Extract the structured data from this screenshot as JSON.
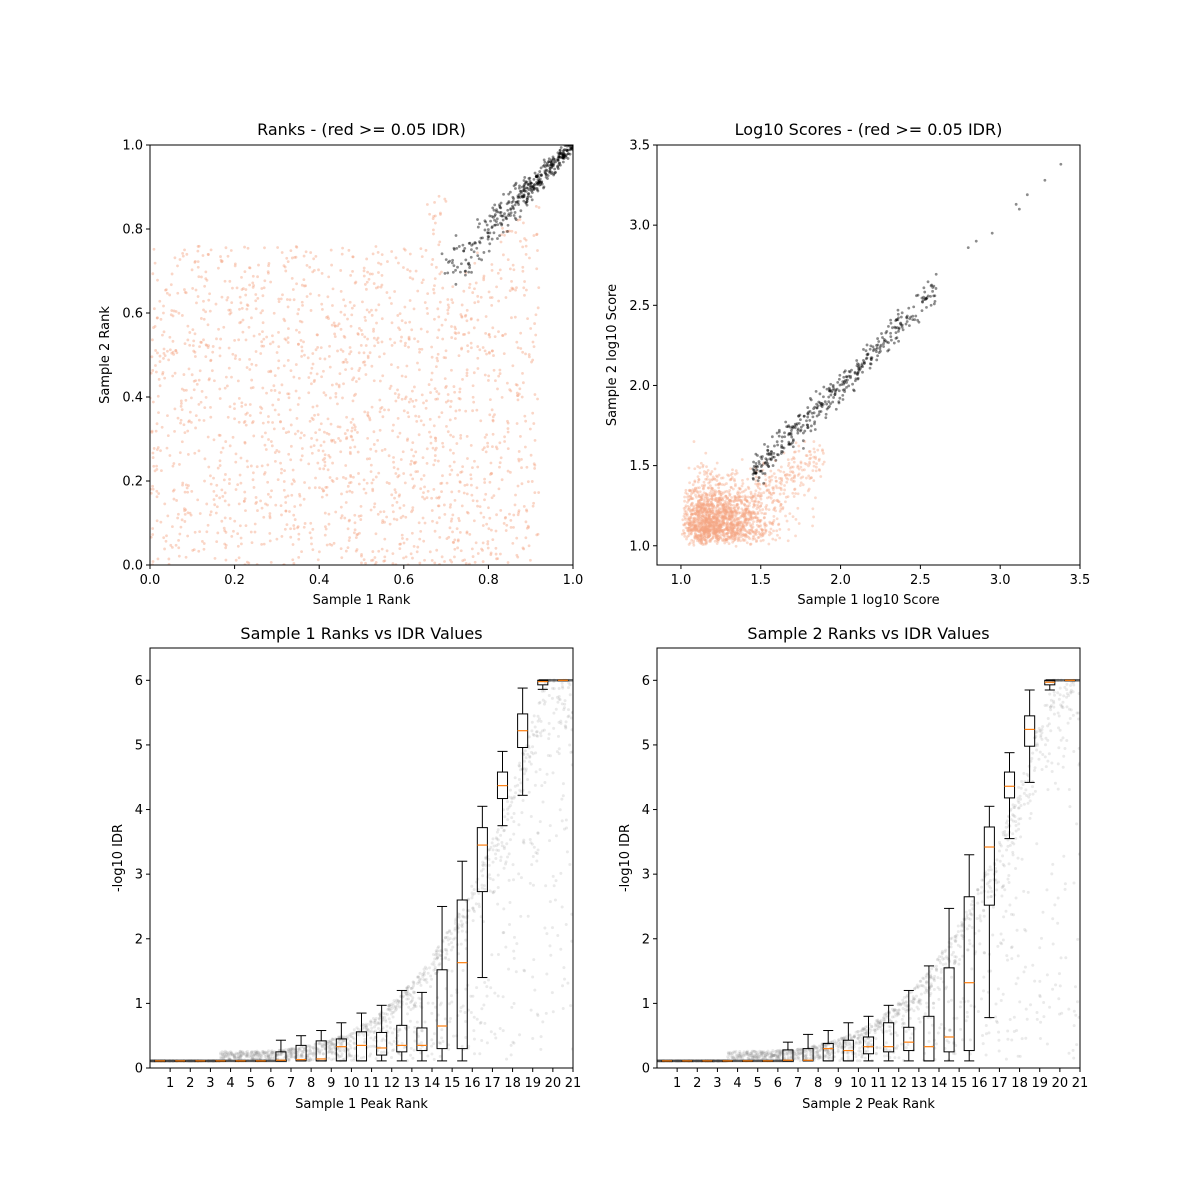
{
  "chart_data": [
    {
      "type": "scatter",
      "title": "Ranks - (red >= 0.05 IDR)",
      "xlabel": "Sample 1 Rank",
      "ylabel": "Sample 2 Rank",
      "xlim": [
        0,
        1
      ],
      "ylim": [
        0,
        1
      ],
      "xticks": [
        "0.0",
        "0.2",
        "0.4",
        "0.6",
        "0.8",
        "1.0"
      ],
      "yticks": [
        "0.0",
        "0.2",
        "0.4",
        "0.6",
        "0.8",
        "1.0"
      ],
      "series": [
        {
          "color": "#f4a582",
          "point_count": 1800,
          "x_range": [
            0,
            0.92
          ],
          "y_range": [
            0,
            0.88
          ],
          "pattern": "uniform, upper-left triangle below diagonal band"
        },
        {
          "color": "#000000",
          "point_count": 400,
          "x_range": [
            0.68,
            1.0
          ],
          "y_range": [
            0.68,
            1.0
          ],
          "pattern": "tight band along diagonal"
        }
      ]
    },
    {
      "type": "scatter",
      "title": "Log10 Scores - (red >= 0.05 IDR)",
      "xlabel": "Sample 1 log10 Score",
      "ylabel": "Sample 2 log10 Score",
      "xlim": [
        0.85,
        3.5
      ],
      "ylim": [
        0.88,
        3.5
      ],
      "xticks": [
        "1.0",
        "1.5",
        "2.0",
        "2.5",
        "3.0",
        "3.5"
      ],
      "yticks": [
        "1.0",
        "1.5",
        "2.0",
        "2.5",
        "3.0",
        "3.5"
      ],
      "series": [
        {
          "color": "#f4a582",
          "point_count": 1800,
          "x_range": [
            1.0,
            1.95
          ],
          "y_range": [
            1.0,
            1.65
          ],
          "pattern": "dense cluster near (1.15, 1.15)"
        },
        {
          "color": "#000000",
          "point_count": 400,
          "x_range": [
            1.45,
            3.38
          ],
          "y_range": [
            1.45,
            3.38
          ],
          "pattern": "diagonal band"
        }
      ]
    },
    {
      "type": "box",
      "title": "Sample 1 Ranks vs IDR Values",
      "xlabel": "Sample 1 Peak Rank",
      "ylabel": "-log10 IDR",
      "xlim": [
        0,
        21
      ],
      "ylim": [
        0,
        6.5
      ],
      "xticks": [
        "1",
        "2",
        "3",
        "4",
        "5",
        "6",
        "7",
        "8",
        "9",
        "10",
        "11",
        "12",
        "13",
        "14",
        "15",
        "16",
        "17",
        "18",
        "19",
        "20",
        "21"
      ],
      "yticks": [
        "0",
        "1",
        "2",
        "3",
        "4",
        "5",
        "6"
      ],
      "boxes": [
        {
          "x": 1,
          "q1": 0.11,
          "median": 0.11,
          "q3": 0.11,
          "whislo": 0.11,
          "whishi": 0.11
        },
        {
          "x": 2,
          "q1": 0.11,
          "median": 0.11,
          "q3": 0.11,
          "whislo": 0.11,
          "whishi": 0.11
        },
        {
          "x": 3,
          "q1": 0.11,
          "median": 0.11,
          "q3": 0.11,
          "whislo": 0.11,
          "whishi": 0.11
        },
        {
          "x": 4,
          "q1": 0.11,
          "median": 0.11,
          "q3": 0.11,
          "whislo": 0.11,
          "whishi": 0.11
        },
        {
          "x": 5,
          "q1": 0.11,
          "median": 0.11,
          "q3": 0.11,
          "whislo": 0.11,
          "whishi": 0.11
        },
        {
          "x": 6,
          "q1": 0.11,
          "median": 0.11,
          "q3": 0.11,
          "whislo": 0.11,
          "whishi": 0.11
        },
        {
          "x": 7,
          "q1": 0.11,
          "median": 0.12,
          "q3": 0.25,
          "whislo": 0.11,
          "whishi": 0.43
        },
        {
          "x": 8,
          "q1": 0.11,
          "median": 0.13,
          "q3": 0.35,
          "whislo": 0.11,
          "whishi": 0.5
        },
        {
          "x": 9,
          "q1": 0.11,
          "median": 0.14,
          "q3": 0.42,
          "whislo": 0.11,
          "whishi": 0.58
        },
        {
          "x": 10,
          "q1": 0.11,
          "median": 0.33,
          "q3": 0.45,
          "whislo": 0.11,
          "whishi": 0.7
        },
        {
          "x": 11,
          "q1": 0.11,
          "median": 0.35,
          "q3": 0.56,
          "whislo": 0.11,
          "whishi": 0.85
        },
        {
          "x": 12,
          "q1": 0.2,
          "median": 0.31,
          "q3": 0.55,
          "whislo": 0.11,
          "whishi": 0.97
        },
        {
          "x": 13,
          "q1": 0.25,
          "median": 0.35,
          "q3": 0.66,
          "whislo": 0.11,
          "whishi": 1.2
        },
        {
          "x": 14,
          "q1": 0.27,
          "median": 0.35,
          "q3": 0.62,
          "whislo": 0.11,
          "whishi": 1.17
        },
        {
          "x": 15,
          "q1": 0.3,
          "median": 0.65,
          "q3": 1.52,
          "whislo": 0.11,
          "whishi": 2.5
        },
        {
          "x": 16,
          "q1": 0.3,
          "median": 1.63,
          "q3": 2.6,
          "whislo": 0.11,
          "whishi": 3.2
        },
        {
          "x": 17,
          "q1": 2.73,
          "median": 3.45,
          "q3": 3.72,
          "whislo": 1.4,
          "whishi": 4.05
        },
        {
          "x": 18,
          "q1": 4.17,
          "median": 4.37,
          "q3": 4.58,
          "whislo": 3.75,
          "whishi": 4.9
        },
        {
          "x": 19,
          "q1": 4.96,
          "median": 5.22,
          "q3": 5.48,
          "whislo": 4.22,
          "whishi": 5.88
        },
        {
          "x": 20,
          "q1": 5.93,
          "median": 5.98,
          "q3": 6.0,
          "whislo": 5.86,
          "whishi": 6.0
        },
        {
          "x": 21,
          "q1": 6.0,
          "median": 6.0,
          "q3": 6.0,
          "whislo": 6.0,
          "whishi": 6.0
        }
      ]
    },
    {
      "type": "box",
      "title": "Sample 2 Ranks vs IDR Values",
      "xlabel": "Sample 2 Peak Rank",
      "ylabel": "-log10 IDR",
      "xlim": [
        0,
        21
      ],
      "ylim": [
        0,
        6.5
      ],
      "xticks": [
        "1",
        "2",
        "3",
        "4",
        "5",
        "6",
        "7",
        "8",
        "9",
        "10",
        "11",
        "12",
        "13",
        "14",
        "15",
        "16",
        "17",
        "18",
        "19",
        "20",
        "21"
      ],
      "yticks": [
        "0",
        "1",
        "2",
        "3",
        "4",
        "5",
        "6"
      ],
      "boxes": [
        {
          "x": 1,
          "q1": 0.11,
          "median": 0.11,
          "q3": 0.11,
          "whislo": 0.11,
          "whishi": 0.11
        },
        {
          "x": 2,
          "q1": 0.11,
          "median": 0.11,
          "q3": 0.11,
          "whislo": 0.11,
          "whishi": 0.11
        },
        {
          "x": 3,
          "q1": 0.11,
          "median": 0.11,
          "q3": 0.11,
          "whislo": 0.11,
          "whishi": 0.11
        },
        {
          "x": 4,
          "q1": 0.11,
          "median": 0.11,
          "q3": 0.11,
          "whislo": 0.11,
          "whishi": 0.11
        },
        {
          "x": 5,
          "q1": 0.11,
          "median": 0.11,
          "q3": 0.11,
          "whislo": 0.11,
          "whishi": 0.11
        },
        {
          "x": 6,
          "q1": 0.11,
          "median": 0.11,
          "q3": 0.11,
          "whislo": 0.11,
          "whishi": 0.11
        },
        {
          "x": 7,
          "q1": 0.11,
          "median": 0.12,
          "q3": 0.28,
          "whislo": 0.11,
          "whishi": 0.4
        },
        {
          "x": 8,
          "q1": 0.11,
          "median": 0.12,
          "q3": 0.3,
          "whislo": 0.11,
          "whishi": 0.52
        },
        {
          "x": 9,
          "q1": 0.11,
          "median": 0.3,
          "q3": 0.38,
          "whislo": 0.11,
          "whishi": 0.58
        },
        {
          "x": 10,
          "q1": 0.11,
          "median": 0.27,
          "q3": 0.43,
          "whislo": 0.11,
          "whishi": 0.7
        },
        {
          "x": 11,
          "q1": 0.22,
          "median": 0.33,
          "q3": 0.48,
          "whislo": 0.11,
          "whishi": 0.8
        },
        {
          "x": 12,
          "q1": 0.25,
          "median": 0.33,
          "q3": 0.7,
          "whislo": 0.11,
          "whishi": 0.97
        },
        {
          "x": 13,
          "q1": 0.27,
          "median": 0.4,
          "q3": 0.63,
          "whislo": 0.11,
          "whishi": 1.2
        },
        {
          "x": 14,
          "q1": 0.11,
          "median": 0.33,
          "q3": 0.8,
          "whislo": 0.11,
          "whishi": 1.58
        },
        {
          "x": 15,
          "q1": 0.25,
          "median": 0.48,
          "q3": 1.55,
          "whislo": 0.11,
          "whishi": 2.47
        },
        {
          "x": 16,
          "q1": 0.27,
          "median": 1.32,
          "q3": 2.65,
          "whislo": 0.11,
          "whishi": 3.3
        },
        {
          "x": 17,
          "q1": 2.52,
          "median": 3.42,
          "q3": 3.73,
          "whislo": 0.78,
          "whishi": 4.05
        },
        {
          "x": 18,
          "q1": 4.18,
          "median": 4.36,
          "q3": 4.58,
          "whislo": 3.55,
          "whishi": 4.88
        },
        {
          "x": 19,
          "q1": 4.98,
          "median": 5.24,
          "q3": 5.45,
          "whislo": 4.42,
          "whishi": 5.85
        },
        {
          "x": 20,
          "q1": 5.93,
          "median": 5.97,
          "q3": 6.0,
          "whislo": 5.85,
          "whishi": 6.0
        },
        {
          "x": 21,
          "q1": 6.0,
          "median": 6.0,
          "q3": 6.0,
          "whislo": 6.0,
          "whishi": 6.0
        }
      ]
    }
  ],
  "colors": {
    "low_idr": "#f4a582",
    "high_idr": "#000000",
    "median": "#ff7f0e",
    "box": "#000000",
    "scatter_grey": "#888888"
  }
}
